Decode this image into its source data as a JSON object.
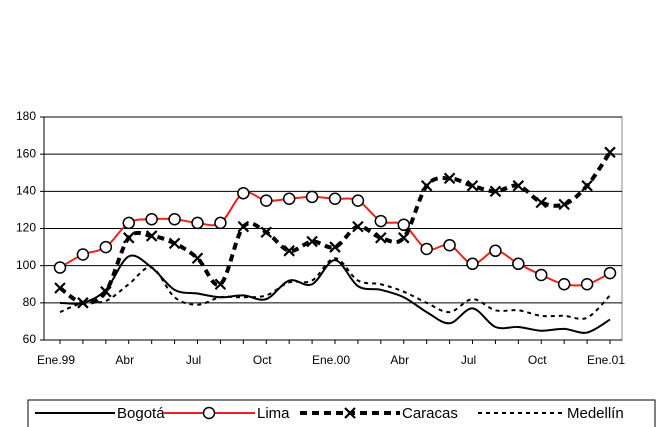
{
  "chart_data": {
    "type": "line",
    "categories": [
      "Ene.99",
      null,
      null,
      "Abr",
      null,
      null,
      "Jul",
      null,
      null,
      "Oct",
      null,
      null,
      "Ene.00",
      null,
      null,
      "Abr",
      null,
      null,
      "Jul",
      null,
      null,
      "Oct",
      null,
      null,
      "Ene.01"
    ],
    "ylim": [
      60,
      180
    ],
    "yticks": [
      60,
      80,
      100,
      120,
      140,
      160,
      180
    ],
    "grid": true,
    "legend": "bottom",
    "smooth": true,
    "series": [
      {
        "name": "Bogotá",
        "color": "#000000",
        "dash": "solid",
        "marker": "none",
        "values": [
          80,
          80,
          87,
          105,
          99,
          87,
          85,
          83,
          84,
          82,
          92,
          90,
          103,
          89,
          87,
          83,
          75,
          69,
          77,
          67,
          67,
          65,
          66,
          64,
          71
        ]
      },
      {
        "name": "Lima",
        "color": "#e8251c",
        "dash": "solid",
        "marker": "circle",
        "values": [
          99,
          106,
          110,
          123,
          125,
          125,
          123,
          123,
          139,
          135,
          136,
          137,
          136,
          135,
          124,
          122,
          109,
          111,
          101,
          108,
          101,
          95,
          90,
          90,
          96
        ]
      },
      {
        "name": "Caracas",
        "color": "#000000",
        "dash": "dashed",
        "marker": "x",
        "values": [
          88,
          80,
          86,
          115,
          116,
          112,
          104,
          90,
          121,
          118,
          108,
          113,
          110,
          121,
          115,
          115,
          143,
          147,
          143,
          140,
          143,
          134,
          133,
          143,
          161
        ]
      },
      {
        "name": "Medellín",
        "color": "#000000",
        "dash": "dotted",
        "marker": "none",
        "values": [
          75,
          80,
          81,
          90,
          99,
          83,
          79,
          83,
          83,
          84,
          91,
          92,
          104,
          92,
          90,
          86,
          80,
          75,
          82,
          76,
          76,
          73,
          73,
          72,
          84
        ]
      }
    ]
  }
}
